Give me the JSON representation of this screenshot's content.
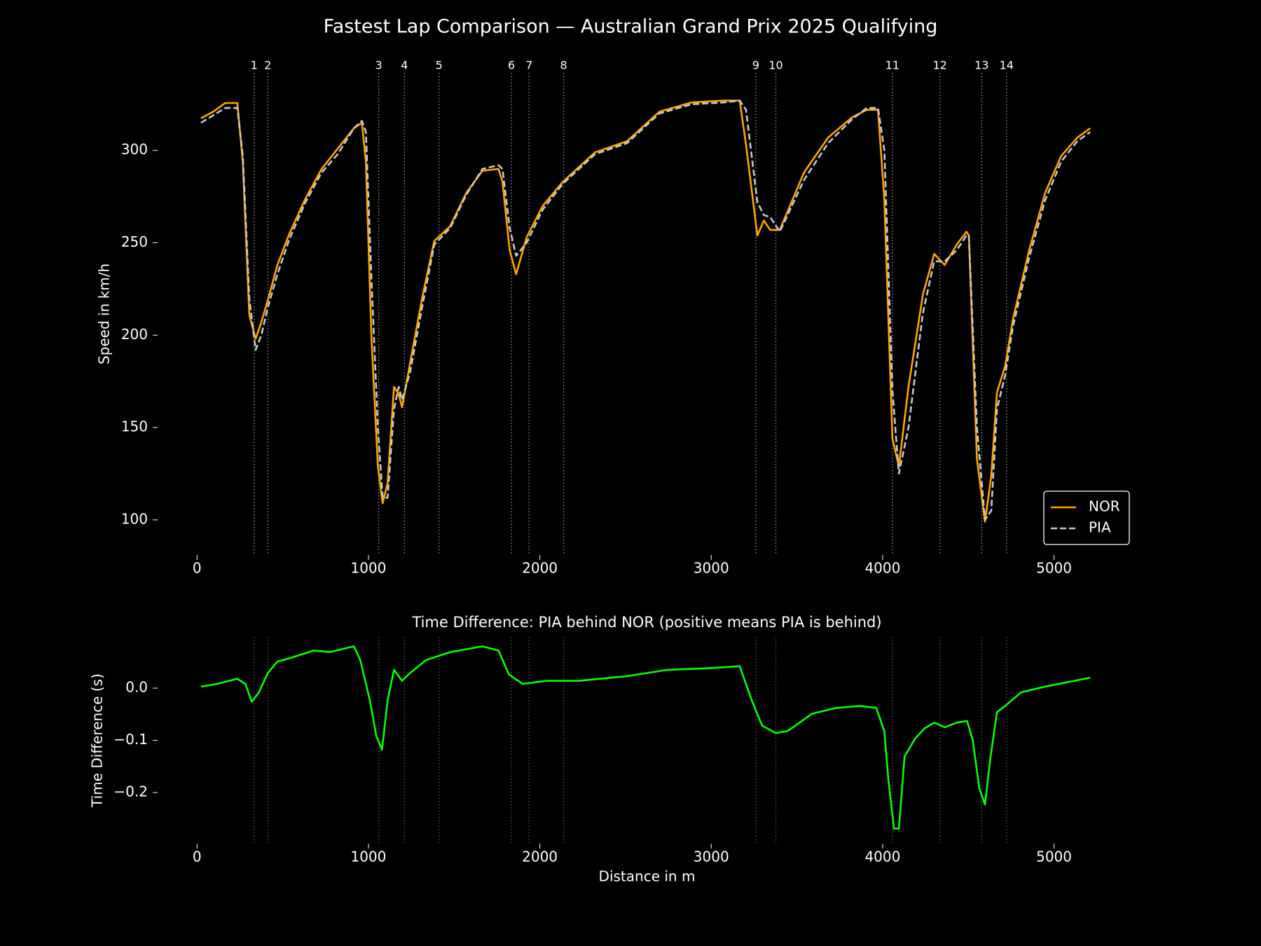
{
  "title": "Fastest Lap Comparison — Australian Grand Prix 2025 Qualifying",
  "chart_data": [
    {
      "type": "line",
      "ylabel": "Speed in km/h",
      "x": [
        23,
        94,
        164,
        235,
        267,
        305,
        342,
        375,
        413,
        469,
        539,
        633,
        727,
        821,
        915,
        962,
        985,
        1018,
        1055,
        1083,
        1112,
        1149,
        1177,
        1196,
        1243,
        1313,
        1384,
        1477,
        1571,
        1665,
        1759,
        1782,
        1824,
        1862,
        1923,
        2017,
        2134,
        2322,
        2509,
        2697,
        2885,
        3072,
        3166,
        3203,
        3269,
        3307,
        3344,
        3400,
        3541,
        3682,
        3823,
        3907,
        3973,
        4010,
        4057,
        4095,
        4151,
        4235,
        4301,
        4362,
        4432,
        4489,
        4503,
        4550,
        4597,
        4634,
        4667,
        4714,
        4761,
        4855,
        4948,
        5042,
        5136,
        5211
      ],
      "series": [
        {
          "name": "NOR",
          "color": "#ffa500",
          "dash": false,
          "values": [
            317.4,
            321,
            325.7,
            325.7,
            294,
            211,
            198,
            207,
            219,
            238,
            255,
            274,
            290,
            301,
            312,
            315,
            294,
            198,
            129,
            109,
            120,
            172,
            168,
            161,
            185,
            220,
            251,
            259,
            277,
            289,
            290,
            283,
            246,
            233,
            253,
            270,
            283,
            299,
            305,
            321,
            326,
            327,
            327,
            303,
            254,
            262,
            257,
            257,
            288,
            307,
            318,
            322,
            322,
            273,
            144,
            129,
            172,
            222,
            244,
            238,
            249,
            256,
            254,
            133,
            99,
            124,
            169,
            183,
            209,
            246,
            277,
            297,
            307,
            312
          ]
        },
        {
          "name": "PIA",
          "color": "#c8c8c8",
          "dash": true,
          "values": [
            315,
            319,
            323,
            323,
            297,
            220,
            192,
            200,
            215,
            233,
            252,
            272,
            288,
            298,
            312,
            316,
            310,
            230,
            150,
            112,
            112,
            160,
            172,
            165,
            180,
            215,
            249,
            258,
            276,
            290,
            292,
            290,
            258,
            243,
            250,
            268,
            282,
            298,
            304,
            320,
            325,
            326,
            327,
            322,
            272,
            265,
            264,
            256,
            284,
            304,
            317,
            323,
            323,
            300,
            170,
            125,
            150,
            212,
            240,
            240,
            246,
            254,
            254,
            150,
            100,
            105,
            160,
            178,
            205,
            242,
            273,
            294,
            305,
            310
          ]
        }
      ],
      "xlim": [
        -230,
        5480
      ],
      "ylim": [
        81,
        342
      ],
      "xticks": [
        0,
        1000,
        2000,
        3000,
        4000,
        5000
      ],
      "yticks": [
        100,
        150,
        200,
        250,
        300
      ],
      "grid": false,
      "legend": "lower right",
      "corners": [
        {
          "number": 1,
          "distance": 333
        },
        {
          "number": 2,
          "distance": 413
        },
        {
          "number": 3,
          "distance": 1060
        },
        {
          "number": 4,
          "distance": 1210
        },
        {
          "number": 5,
          "distance": 1412
        },
        {
          "number": 6,
          "distance": 1834
        },
        {
          "number": 7,
          "distance": 1937
        },
        {
          "number": 8,
          "distance": 2139
        },
        {
          "number": 9,
          "distance": 3260
        },
        {
          "number": 10,
          "distance": 3377
        },
        {
          "number": 11,
          "distance": 4057
        },
        {
          "number": 12,
          "distance": 4334
        },
        {
          "number": 13,
          "distance": 4578
        },
        {
          "number": 14,
          "distance": 4723
        }
      ]
    },
    {
      "type": "line",
      "title": "Time Difference: PIA behind NOR (positive means PIA is behind)",
      "xlabel": "Distance in m",
      "ylabel": "Time Difference (s)",
      "color": "#00ff00",
      "x": [
        23,
        117,
        235,
        282,
        319,
        361,
        413,
        469,
        539,
        680,
        774,
        915,
        952,
        1008,
        1046,
        1079,
        1112,
        1149,
        1196,
        1243,
        1337,
        1477,
        1665,
        1759,
        1820,
        1900,
        2040,
        2228,
        2509,
        2744,
        2978,
        3166,
        3236,
        3297,
        3377,
        3447,
        3588,
        3729,
        3869,
        3963,
        4010,
        4034,
        4066,
        4095,
        4128,
        4189,
        4245,
        4301,
        4362,
        4432,
        4493,
        4526,
        4564,
        4597,
        4630,
        4667,
        4723,
        4808,
        4948,
        5211
      ],
      "values": [
        0.003,
        0.008,
        0.018,
        0.008,
        -0.026,
        -0.008,
        0.029,
        0.051,
        0.057,
        0.072,
        0.069,
        0.08,
        0.054,
        -0.023,
        -0.092,
        -0.118,
        -0.023,
        0.035,
        0.014,
        0.029,
        0.054,
        0.069,
        0.08,
        0.072,
        0.026,
        0.008,
        0.014,
        0.014,
        0.023,
        0.035,
        0.038,
        0.042,
        -0.023,
        -0.072,
        -0.086,
        -0.082,
        -0.049,
        -0.038,
        -0.034,
        -0.038,
        -0.083,
        -0.177,
        -0.269,
        -0.269,
        -0.131,
        -0.097,
        -0.077,
        -0.066,
        -0.075,
        -0.066,
        -0.063,
        -0.1,
        -0.192,
        -0.223,
        -0.131,
        -0.046,
        -0.032,
        -0.008,
        0.003,
        0.02
      ],
      "xlim": [
        -230,
        5480
      ],
      "ylim": [
        -0.298,
        0.098
      ],
      "xticks": [
        0,
        1000,
        2000,
        3000,
        4000,
        5000
      ],
      "yticks": [
        {
          "value": 0,
          "label": "0.0"
        },
        {
          "value": -0.1,
          "label": "−0.1"
        },
        {
          "value": -0.2,
          "label": "−0.2"
        }
      ],
      "grid": false
    }
  ]
}
